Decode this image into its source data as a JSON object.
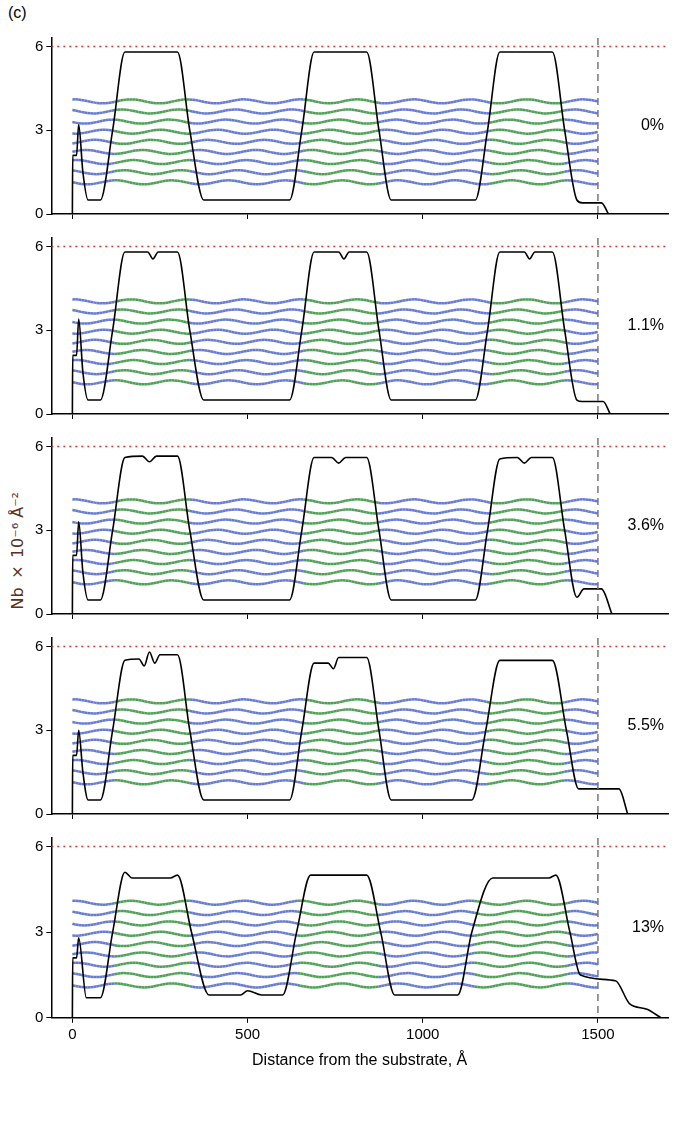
{
  "panel_label": "(c)",
  "ylabel": "Nb × 10⁻⁶ Å⁻²",
  "chart_data": [
    {
      "type": "line",
      "title": "0%",
      "x": [
        0,
        1,
        12,
        18,
        30,
        45,
        80,
        115,
        150,
        300,
        335,
        375,
        620,
        655,
        690,
        840,
        875,
        910,
        1150,
        1185,
        1220,
        1370,
        1405,
        1440,
        1455,
        1510,
        1530
      ],
      "values": [
        0,
        2.1,
        2.1,
        3.2,
        1.5,
        0.5,
        0.5,
        3,
        5.8,
        5.8,
        3,
        0.5,
        0.5,
        3,
        5.8,
        5.8,
        3,
        0.5,
        0.5,
        3,
        5.8,
        5.8,
        3,
        0.5,
        0.4,
        0.4,
        0
      ],
      "color": "#000000",
      "xlim": [
        -60,
        1700
      ],
      "xticks": [
        0,
        500,
        1000,
        1500
      ],
      "ylim": [
        0,
        6.3
      ],
      "yticks": [
        0,
        3,
        6
      ],
      "grid": false,
      "tick_labels": "y",
      "reference_lines": [
        {
          "axis": "y",
          "value": 6,
          "color": "#cc3333",
          "line_style": "dotted"
        },
        {
          "axis": "x",
          "value": 1500,
          "color": "#777777",
          "line_style": "dashed"
        }
      ]
    },
    {
      "type": "line",
      "title": "1.1%",
      "x": [
        0,
        1,
        12,
        18,
        30,
        45,
        80,
        115,
        150,
        215,
        230,
        245,
        300,
        335,
        375,
        620,
        655,
        690,
        760,
        775,
        790,
        840,
        875,
        910,
        1150,
        1185,
        1220,
        1290,
        1305,
        1320,
        1370,
        1405,
        1440,
        1455,
        1515,
        1535
      ],
      "values": [
        0,
        2.1,
        2.1,
        3.4,
        1.5,
        0.5,
        0.5,
        3,
        5.8,
        5.8,
        5.55,
        5.8,
        5.8,
        3,
        0.5,
        0.5,
        3,
        5.8,
        5.8,
        5.55,
        5.8,
        5.8,
        3,
        0.5,
        0.5,
        3,
        5.8,
        5.8,
        5.55,
        5.8,
        5.8,
        3,
        0.5,
        0.45,
        0.45,
        0
      ],
      "color": "#000000",
      "xlim": [
        -60,
        1700
      ],
      "xticks": [
        0,
        500,
        1000,
        1500
      ],
      "ylim": [
        0,
        6.3
      ],
      "yticks": [
        0,
        3,
        6
      ],
      "grid": false,
      "tick_labels": "y",
      "reference_lines": [
        {
          "axis": "y",
          "value": 6,
          "color": "#cc3333",
          "line_style": "dotted"
        },
        {
          "axis": "x",
          "value": 1500,
          "color": "#777777",
          "line_style": "dashed"
        }
      ]
    },
    {
      "type": "line",
      "title": "3.6%",
      "x": [
        0,
        1,
        12,
        18,
        30,
        45,
        80,
        115,
        150,
        200,
        220,
        240,
        300,
        335,
        375,
        620,
        655,
        690,
        740,
        760,
        780,
        840,
        875,
        910,
        1150,
        1185,
        1220,
        1270,
        1290,
        1310,
        1370,
        1405,
        1440,
        1460,
        1510,
        1540
      ],
      "values": [
        0,
        2.1,
        2.1,
        3.3,
        1.5,
        0.5,
        0.5,
        3,
        5.6,
        5.65,
        5.45,
        5.65,
        5.65,
        3,
        0.5,
        0.5,
        3,
        5.6,
        5.6,
        5.4,
        5.6,
        5.6,
        3,
        0.5,
        0.5,
        3,
        5.55,
        5.6,
        5.4,
        5.6,
        5.6,
        3,
        0.6,
        0.9,
        0.9,
        0
      ],
      "color": "#000000",
      "xlim": [
        -60,
        1700
      ],
      "xticks": [
        0,
        500,
        1000,
        1500
      ],
      "ylim": [
        0,
        6.3
      ],
      "yticks": [
        0,
        3,
        6
      ],
      "grid": false,
      "tick_labels": "y",
      "reference_lines": [
        {
          "axis": "y",
          "value": 6,
          "color": "#cc3333",
          "line_style": "dotted"
        },
        {
          "axis": "x",
          "value": 1500,
          "color": "#777777",
          "line_style": "dashed"
        }
      ]
    },
    {
      "type": "line",
      "title": "5.5%",
      "x": [
        0,
        1,
        12,
        18,
        30,
        45,
        80,
        115,
        150,
        190,
        205,
        220,
        235,
        250,
        300,
        335,
        375,
        620,
        655,
        690,
        730,
        745,
        760,
        840,
        875,
        910,
        1140,
        1180,
        1220,
        1370,
        1410,
        1445,
        1560,
        1585
      ],
      "values": [
        0,
        2.1,
        2.1,
        3.0,
        1.5,
        0.5,
        0.5,
        3,
        5.5,
        5.55,
        5.3,
        5.8,
        5.4,
        5.7,
        5.7,
        3,
        0.5,
        0.5,
        3,
        5.4,
        5.4,
        5.2,
        5.6,
        5.6,
        3,
        0.5,
        0.5,
        3,
        5.5,
        5.5,
        3,
        0.9,
        0.9,
        0
      ],
      "color": "#000000",
      "xlim": [
        -60,
        1700
      ],
      "xticks": [
        0,
        500,
        1000,
        1500
      ],
      "ylim": [
        0,
        6.3
      ],
      "yticks": [
        0,
        3,
        6
      ],
      "grid": false,
      "tick_labels": "y",
      "reference_lines": [
        {
          "axis": "y",
          "value": 6,
          "color": "#cc3333",
          "line_style": "dotted"
        },
        {
          "axis": "x",
          "value": 1500,
          "color": "#777777",
          "line_style": "dashed"
        }
      ]
    },
    {
      "type": "line",
      "title": "13%",
      "xlabel": "Distance from the substrate, Å",
      "x": [
        0,
        1,
        12,
        18,
        40,
        80,
        115,
        150,
        170,
        280,
        300,
        340,
        390,
        480,
        500,
        540,
        600,
        640,
        680,
        840,
        880,
        920,
        1100,
        1140,
        1200,
        1360,
        1380,
        1420,
        1450,
        1550,
        1590,
        1640,
        1680
      ],
      "values": [
        0,
        2.1,
        2.1,
        2.8,
        0.7,
        0.7,
        3,
        5.1,
        4.9,
        4.9,
        5.0,
        3,
        0.8,
        0.8,
        0.95,
        0.8,
        0.8,
        3,
        5.0,
        5.0,
        3,
        0.8,
        0.8,
        3,
        4.9,
        4.9,
        5.0,
        3,
        1.5,
        1.3,
        0.5,
        0.3,
        0
      ],
      "color": "#000000",
      "xlim": [
        -60,
        1700
      ],
      "xticks": [
        0,
        500,
        1000,
        1500
      ],
      "ylim": [
        0,
        6.3
      ],
      "yticks": [
        0,
        3,
        6
      ],
      "grid": false,
      "tick_labels": true,
      "reference_lines": [
        {
          "axis": "y",
          "value": 6,
          "color": "#cc3333",
          "line_style": "dotted"
        },
        {
          "axis": "x",
          "value": 1500,
          "color": "#777777",
          "line_style": "dashed"
        }
      ]
    }
  ]
}
